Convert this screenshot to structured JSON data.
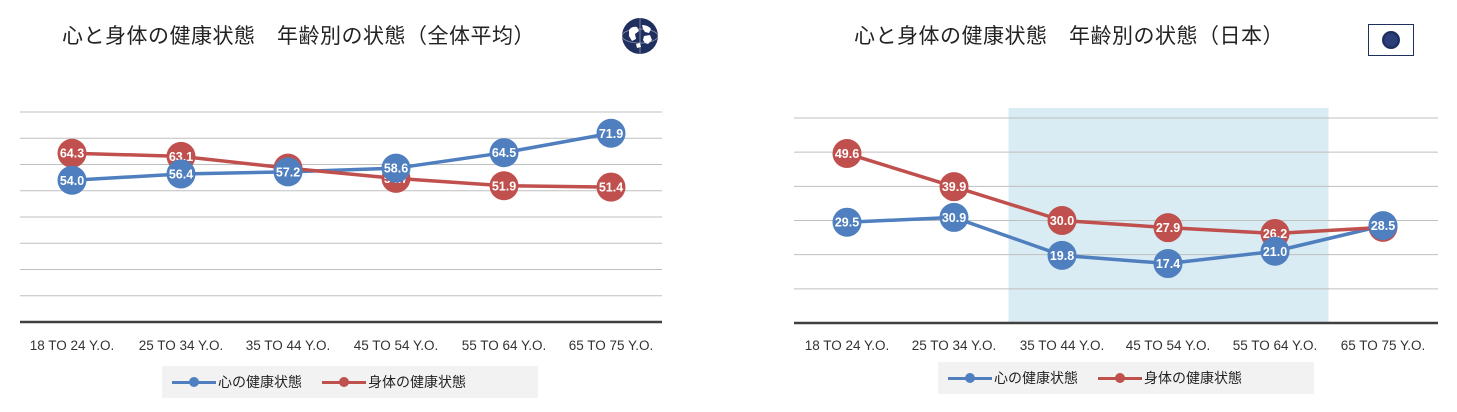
{
  "colors": {
    "mental": "#4f7fbf",
    "physical": "#c0504d",
    "grid": "#bfbfbf",
    "axis": "#404040",
    "highlight": "#d9ebf3",
    "navy": "#1f2f5f"
  },
  "icons": {
    "left": "globe-icon",
    "right": "japan-flag-icon"
  },
  "chart_data": [
    {
      "type": "line",
      "title": "心と身体の健康状態　年齢別の状態（全体平均）",
      "categories": [
        "18 TO 24 Y.O.",
        "25 TO 34 Y.O.",
        "35 TO 44 Y.O.",
        "45 TO 54 Y.O.",
        "55 TO 64 Y.O.",
        "65 TO 75 Y.O."
      ],
      "series": [
        {
          "name": "心の健康状態",
          "values": [
            54.0,
            56.4,
            57.2,
            58.6,
            64.5,
            71.9
          ],
          "color": "#4f7fbf"
        },
        {
          "name": "身体の健康状態",
          "values": [
            64.3,
            63.1,
            58.6,
            54.7,
            51.9,
            51.4
          ],
          "color": "#c0504d"
        }
      ],
      "ylim": [
        0,
        80
      ],
      "grid": true,
      "legend_position": "bottom",
      "data_labels": true
    },
    {
      "type": "line",
      "title": "心と身体の健康状態　年齢別の状態（日本）",
      "categories": [
        "18 TO 24 Y.O.",
        "25 TO 34 Y.O.",
        "35 TO 44 Y.O.",
        "45 TO 54 Y.O.",
        "55 TO 64 Y.O.",
        "65 TO 75 Y.O."
      ],
      "series": [
        {
          "name": "心の健康状態",
          "values": [
            29.5,
            30.9,
            19.8,
            17.4,
            21.0,
            28.5
          ],
          "color": "#4f7fbf"
        },
        {
          "name": "身体の健康状態",
          "values": [
            49.6,
            39.9,
            30.0,
            27.9,
            26.2,
            28.0
          ],
          "color": "#c0504d"
        }
      ],
      "ylim": [
        0,
        60
      ],
      "grid": true,
      "legend_position": "bottom",
      "highlight_categories": [
        "35 TO 44 Y.O.",
        "45 TO 54 Y.O.",
        "55 TO 64 Y.O."
      ],
      "data_labels": true
    }
  ]
}
